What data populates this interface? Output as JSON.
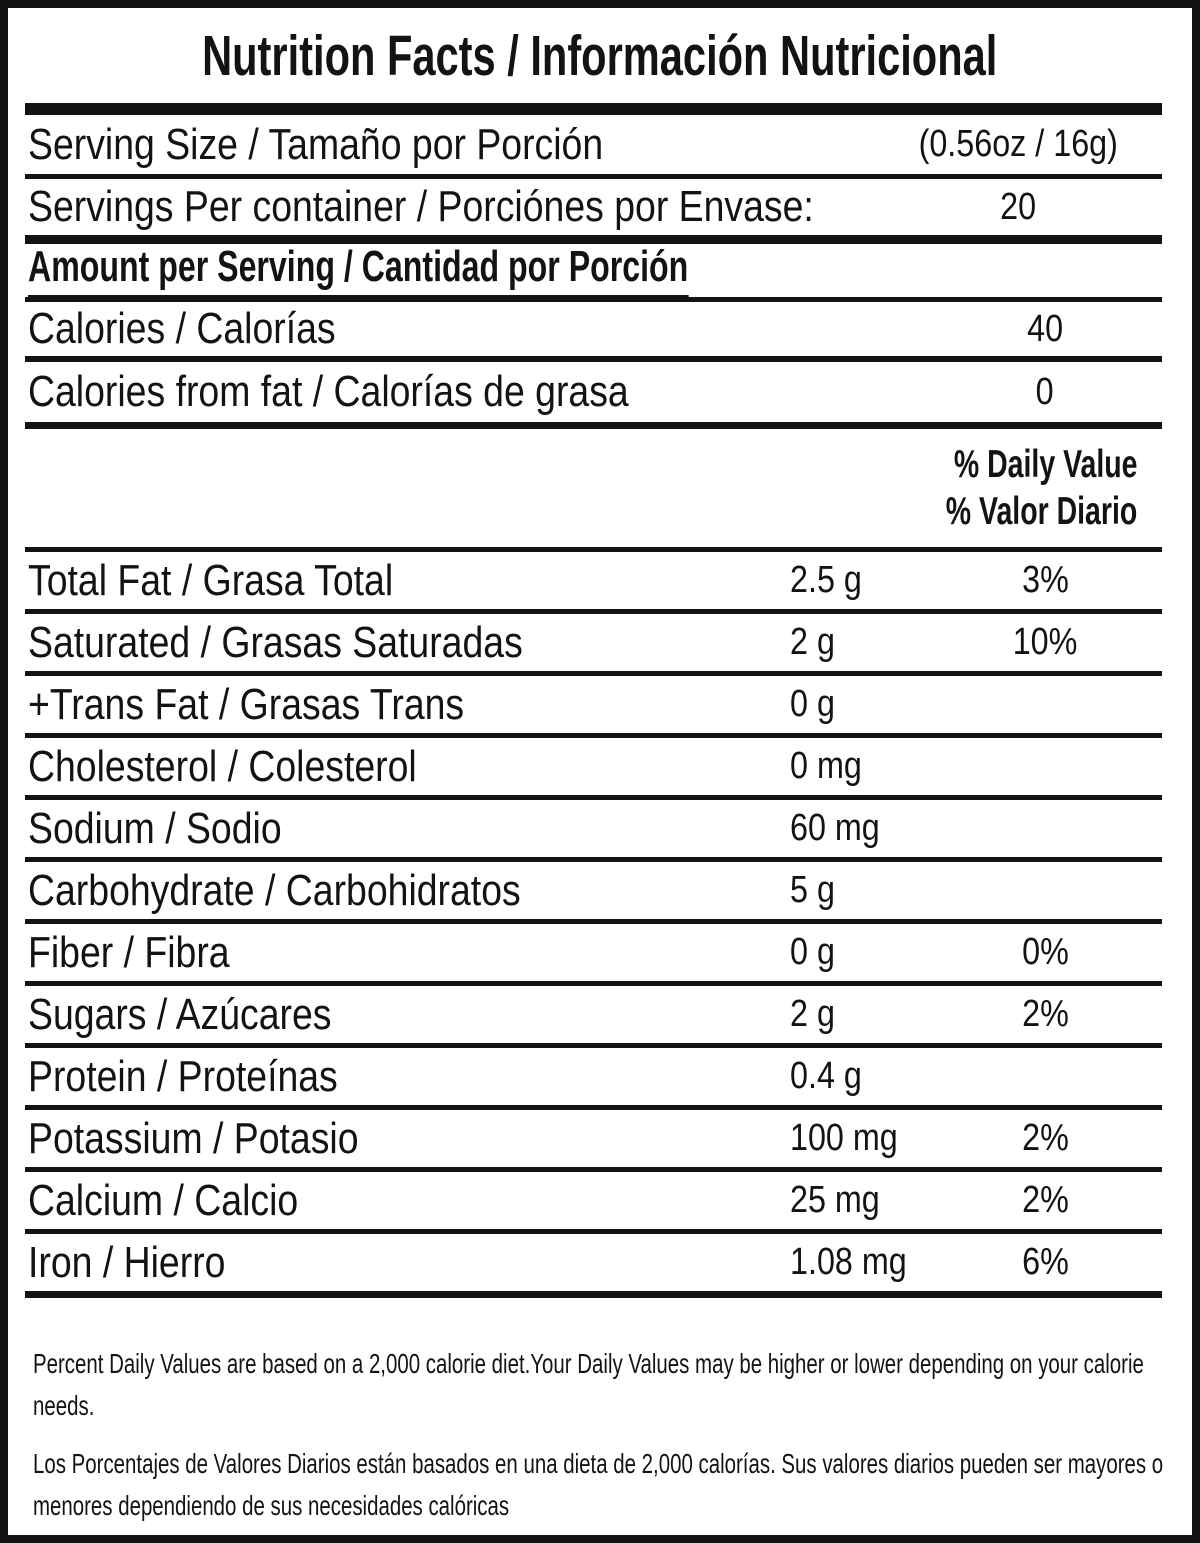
{
  "title": "Nutrition Facts / Información Nutricional",
  "serving": {
    "size_label": "Serving Size / Tamaño por Porción",
    "size_value": "(0.56oz / 16g)",
    "per_container_label": "Servings Per container / Porciónes por Envase:",
    "per_container_value": "20"
  },
  "amount_header": "Amount per Serving / Cantidad por Porción",
  "calories": {
    "label": "Calories / Calorías",
    "value": "40"
  },
  "calories_from_fat": {
    "label": "Calories from fat / Calorías de grasa",
    "value": "0"
  },
  "daily_value_header": {
    "line1": "% Daily Value",
    "line2": "% Valor Diario"
  },
  "nutrients": [
    {
      "label": "Total Fat / Grasa Total",
      "amount": "2.5 g",
      "dv": "3%"
    },
    {
      "label": "Saturated / Grasas Saturadas",
      "amount": "2 g",
      "dv": "10%"
    },
    {
      "label": "+Trans Fat / Grasas Trans",
      "amount": "0 g",
      "dv": ""
    },
    {
      "label": "Cholesterol / Colesterol",
      "amount": "0 mg",
      "dv": ""
    },
    {
      "label": "Sodium / Sodio",
      "amount": "60 mg",
      "dv": ""
    },
    {
      "label": "Carbohydrate / Carbohidratos",
      "amount": "5 g",
      "dv": ""
    },
    {
      "label": "Fiber / Fibra",
      "amount": "0 g",
      "dv": "0%"
    },
    {
      "label": "Sugars / Azúcares",
      "amount": "2 g",
      "dv": "2%"
    },
    {
      "label": "Protein / Proteínas",
      "amount": "0.4 g",
      "dv": ""
    },
    {
      "label": "Potassium / Potasio",
      "amount": "100 mg",
      "dv": "2%"
    },
    {
      "label": "Calcium / Calcio",
      "amount": "25 mg",
      "dv": "2%"
    },
    {
      "label": "Iron / Hierro",
      "amount": "1.08 mg",
      "dv": "6%"
    }
  ],
  "footnotes": {
    "english": "Percent Daily Values are based on a 2,000 calorie diet.Your Daily Values may be higher or lower depending on your calorie needs.",
    "spanish": "Los Porcentajes de Valores Diarios están basados en una dieta de 2,000 calorías. Sus valores diarios pueden ser mayores o menores dependiendo de sus necesidades calóricas"
  },
  "colors": {
    "ink": "#131313",
    "background": "#ffffff"
  }
}
